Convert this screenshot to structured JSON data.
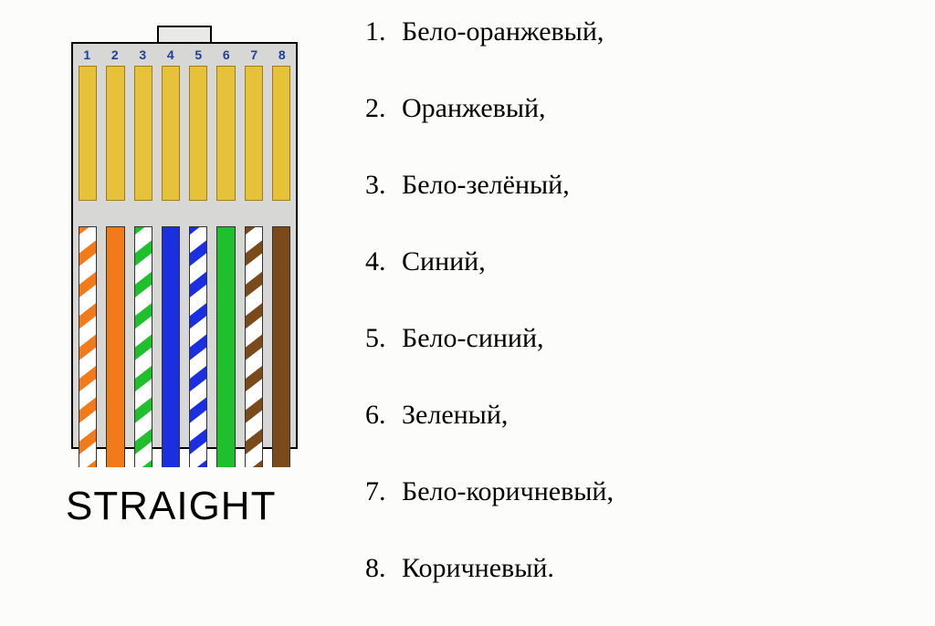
{
  "caption": "STRAIGHT",
  "pin_numbers": [
    "1",
    "2",
    "3",
    "4",
    "5",
    "6",
    "7",
    "8"
  ],
  "contact_color": "#e6c23a",
  "body_color": "#d7d7d6",
  "wires": [
    {
      "type": "striped",
      "color": "#f27a18",
      "base": "#ffffff"
    },
    {
      "type": "solid",
      "color": "#f27a18"
    },
    {
      "type": "striped",
      "color": "#1fbf2e",
      "base": "#ffffff"
    },
    {
      "type": "solid",
      "color": "#1a2fe0"
    },
    {
      "type": "striped",
      "color": "#1a2fe0",
      "base": "#ffffff"
    },
    {
      "type": "solid",
      "color": "#1fbf2e"
    },
    {
      "type": "striped",
      "color": "#7a4a1a",
      "base": "#ffffff"
    },
    {
      "type": "solid",
      "color": "#7a4a1a"
    }
  ],
  "list": [
    {
      "n": "1.",
      "label": "Бело-оранжевый,"
    },
    {
      "n": "2.",
      "label": "Оранжевый,"
    },
    {
      "n": "3.",
      "label": "Бело-зелёный,"
    },
    {
      "n": "4.",
      "label": "Синий,"
    },
    {
      "n": "5.",
      "label": "Бело-синий,"
    },
    {
      "n": "6.",
      "label": "Зеленый,"
    },
    {
      "n": "7.",
      "label": "Бело-коричневый,"
    },
    {
      "n": "8.",
      "label": "Коричневый."
    }
  ],
  "list_fontsize": 30,
  "caption_fontsize": 44,
  "background_color": "#fcfcfb"
}
